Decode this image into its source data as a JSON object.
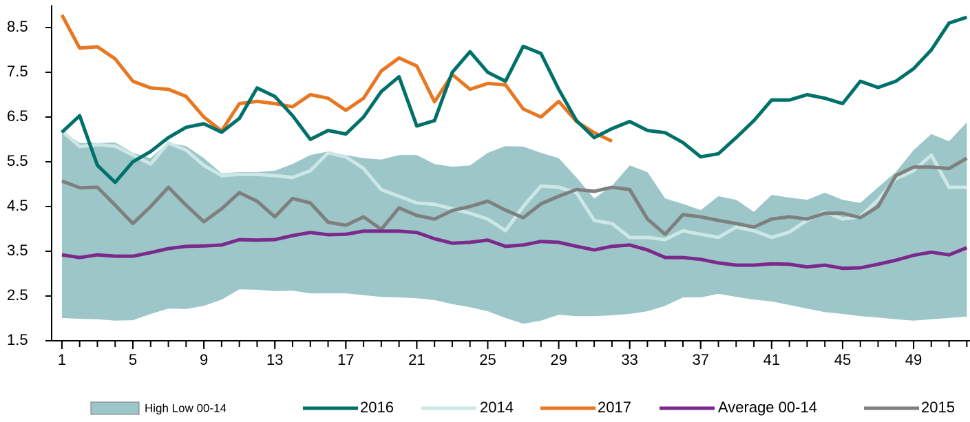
{
  "chart_data": {
    "type": "line",
    "x": [
      1,
      2,
      3,
      4,
      5,
      6,
      7,
      8,
      9,
      10,
      11,
      12,
      13,
      14,
      15,
      16,
      17,
      18,
      19,
      20,
      21,
      22,
      23,
      24,
      25,
      26,
      27,
      28,
      29,
      30,
      31,
      32,
      33,
      34,
      35,
      36,
      37,
      38,
      39,
      40,
      41,
      42,
      43,
      44,
      45,
      46,
      47,
      48,
      49,
      50,
      51,
      52
    ],
    "xlim": [
      0.42,
      52.18
    ],
    "xticks": [
      1,
      5,
      9,
      13,
      17,
      21,
      25,
      29,
      33,
      37,
      41,
      45,
      49
    ],
    "ylim": [
      1.5,
      9
    ],
    "yticks": [
      1.5,
      2.5,
      3.5,
      4.5,
      5.5,
      6.5,
      7.5,
      8.5
    ],
    "series": [
      {
        "name": "High Low 00-14",
        "type": "band",
        "color": "#9cc6c8",
        "high": [
          6.19,
          5.92,
          5.92,
          5.93,
          5.7,
          5.58,
          5.93,
          5.85,
          5.58,
          5.24,
          5.27,
          5.27,
          5.3,
          5.45,
          5.65,
          5.73,
          5.65,
          5.58,
          5.55,
          5.65,
          5.65,
          5.45,
          5.39,
          5.42,
          5.7,
          5.85,
          5.84,
          5.7,
          5.58,
          5.15,
          4.68,
          4.96,
          5.42,
          5.27,
          4.68,
          4.56,
          4.42,
          4.73,
          4.65,
          4.38,
          4.76,
          4.7,
          4.65,
          4.81,
          4.65,
          4.58,
          4.93,
          5.27,
          5.76,
          6.12,
          5.96,
          6.38
        ],
        "low": [
          2.01,
          1.99,
          1.98,
          1.95,
          1.96,
          2.1,
          2.22,
          2.21,
          2.28,
          2.42,
          2.65,
          2.64,
          2.61,
          2.62,
          2.56,
          2.56,
          2.56,
          2.52,
          2.48,
          2.47,
          2.45,
          2.41,
          2.32,
          2.25,
          2.16,
          2.01,
          1.88,
          1.95,
          2.08,
          2.05,
          2.05,
          2.07,
          2.1,
          2.16,
          2.28,
          2.47,
          2.47,
          2.55,
          2.48,
          2.42,
          2.38,
          2.3,
          2.22,
          2.14,
          2.1,
          2.05,
          2.02,
          1.98,
          1.95,
          1.98,
          2.01,
          2.04
        ]
      },
      {
        "name": "2016",
        "color": "#00706b",
        "values": [
          6.16,
          6.53,
          5.42,
          5.04,
          5.5,
          5.73,
          6.04,
          6.27,
          6.35,
          6.16,
          6.47,
          7.15,
          6.96,
          6.53,
          6.0,
          6.2,
          6.12,
          6.5,
          7.07,
          7.4,
          6.3,
          6.42,
          7.5,
          7.96,
          7.5,
          7.3,
          8.08,
          7.92,
          7.12,
          6.42,
          6.04,
          6.24,
          6.4,
          6.2,
          6.15,
          5.93,
          5.61,
          5.68,
          6.04,
          6.42,
          6.88,
          6.88,
          7.0,
          6.92,
          6.8,
          7.3,
          7.16,
          7.3,
          7.58,
          8.0,
          8.6,
          8.73
        ]
      },
      {
        "name": "2014",
        "color": "#cde7e7",
        "values": [
          6.19,
          5.84,
          5.88,
          5.85,
          5.65,
          5.45,
          5.92,
          5.76,
          5.42,
          5.19,
          5.22,
          5.22,
          5.19,
          5.15,
          5.3,
          5.7,
          5.61,
          5.35,
          4.88,
          4.73,
          4.58,
          4.55,
          4.45,
          4.35,
          4.22,
          3.96,
          4.5,
          4.96,
          4.93,
          4.81,
          4.19,
          4.12,
          3.81,
          3.81,
          3.76,
          3.96,
          3.88,
          3.81,
          4.04,
          3.96,
          3.81,
          3.93,
          4.19,
          4.38,
          4.22,
          4.27,
          4.65,
          5.12,
          5.3,
          5.65,
          4.93,
          4.93
        ]
      },
      {
        "name": "2017",
        "color": "#e87722",
        "values": [
          8.78,
          8.04,
          8.07,
          7.8,
          7.3,
          7.15,
          7.12,
          6.96,
          6.5,
          6.19,
          6.8,
          6.85,
          6.8,
          6.73,
          7.0,
          6.92,
          6.65,
          6.92,
          7.53,
          7.82,
          7.64,
          6.84,
          7.45,
          7.12,
          7.25,
          7.22,
          6.68,
          6.5,
          6.85,
          6.4,
          6.15,
          5.96,
          null,
          null,
          null,
          null,
          null,
          null,
          null,
          null,
          null,
          null,
          null,
          null,
          null,
          null,
          null,
          null,
          null,
          null,
          null,
          null
        ]
      },
      {
        "name": "Average 00-14",
        "color": "#7b2a8c",
        "values": [
          3.42,
          3.36,
          3.42,
          3.39,
          3.39,
          3.47,
          3.56,
          3.61,
          3.62,
          3.64,
          3.76,
          3.75,
          3.76,
          3.85,
          3.92,
          3.87,
          3.88,
          3.95,
          3.95,
          3.95,
          3.92,
          3.78,
          3.68,
          3.7,
          3.75,
          3.61,
          3.64,
          3.72,
          3.7,
          3.61,
          3.53,
          3.61,
          3.64,
          3.53,
          3.36,
          3.36,
          3.32,
          3.24,
          3.19,
          3.19,
          3.22,
          3.21,
          3.15,
          3.19,
          3.12,
          3.13,
          3.21,
          3.3,
          3.41,
          3.48,
          3.42,
          3.58
        ]
      },
      {
        "name": "2015",
        "color": "#7f7f7f",
        "values": [
          5.07,
          4.92,
          4.93,
          4.53,
          4.12,
          4.5,
          4.93,
          4.53,
          4.16,
          4.45,
          4.81,
          4.62,
          4.27,
          4.68,
          4.58,
          4.15,
          4.08,
          4.27,
          3.99,
          4.47,
          4.3,
          4.22,
          4.41,
          4.5,
          4.62,
          4.42,
          4.25,
          4.56,
          4.73,
          4.88,
          4.84,
          4.93,
          4.88,
          4.22,
          3.88,
          4.32,
          4.27,
          4.19,
          4.12,
          4.04,
          4.22,
          4.27,
          4.22,
          4.35,
          4.35,
          4.25,
          4.5,
          5.19,
          5.38,
          5.38,
          5.35,
          5.58
        ]
      }
    ]
  }
}
